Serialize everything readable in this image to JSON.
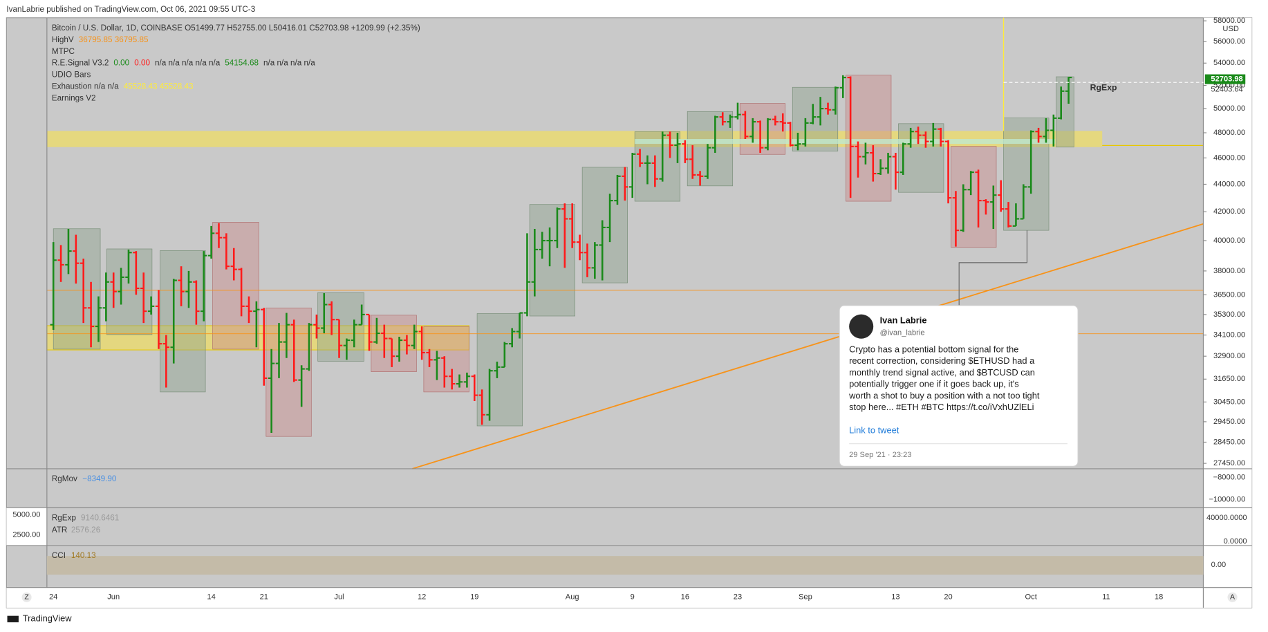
{
  "header": "IvanLabrie published on TradingView.com, Oct 06, 2021 09:55 UTC-3",
  "legend": [
    [
      [
        "Bitcoin / U.S. Dollar, 1D, COINBASE  O51499.77  H52755.00  L50416.01  C52703.98  +1209.99 (+2.35%)",
        "#333333"
      ]
    ],
    [
      [
        "HighV",
        "#333333"
      ],
      [
        "36795.85  36795.85",
        "#f7931a"
      ]
    ],
    [
      [
        "MTPC",
        "#333333"
      ]
    ],
    [
      [
        "R.E.Signal V3.2",
        "#333333"
      ],
      [
        "0.00",
        "#1a8a1a"
      ],
      [
        "0.00",
        "#ff1a1a"
      ],
      [
        "n/a  n/a  n/a  n/a  n/a",
        "#333333"
      ],
      [
        "54154.68",
        "#1a8a1a"
      ],
      [
        "n/a  n/a  n/a  n/a",
        "#333333"
      ]
    ],
    [
      [
        "UDIO Bars",
        "#333333"
      ]
    ],
    [
      [
        "Exhaustion  n/a  n/a",
        "#333333"
      ],
      [
        "45528.43  45528.43",
        "#ffeb3b"
      ]
    ],
    [
      [
        "Earnings V2",
        "#333333"
      ]
    ]
  ],
  "chart_data": {
    "type": "ohlc",
    "log_scale": true,
    "grid": false,
    "up_color": "#1a8a1a",
    "down_color": "#ff1a1a",
    "categories": [
      "24",
      null,
      null,
      null,
      null,
      null,
      null,
      null,
      "Jun",
      null,
      null,
      null,
      null,
      null,
      null,
      null,
      null,
      null,
      null,
      null,
      null,
      "14",
      null,
      null,
      null,
      null,
      null,
      null,
      "21",
      null,
      null,
      null,
      null,
      null,
      null,
      null,
      null,
      null,
      "Jul",
      null,
      null,
      null,
      null,
      null,
      null,
      null,
      null,
      null,
      null,
      "12",
      null,
      null,
      null,
      null,
      null,
      null,
      "19",
      null,
      null,
      null,
      null,
      null,
      null,
      null,
      null,
      null,
      null,
      null,
      null,
      "Aug",
      null,
      null,
      null,
      null,
      null,
      null,
      null,
      "9",
      null,
      null,
      null,
      null,
      null,
      null,
      "16",
      null,
      null,
      null,
      null,
      null,
      null,
      "23",
      null,
      null,
      null,
      null,
      null,
      null,
      null,
      null,
      "Sep",
      null,
      null,
      null,
      null,
      null,
      null,
      null,
      null,
      null,
      null,
      null,
      "13",
      null,
      null,
      null,
      null,
      null,
      null,
      "20",
      null,
      null,
      null,
      null,
      null,
      null,
      null,
      null,
      null,
      null,
      "Oct",
      null,
      null,
      null,
      null,
      null,
      null,
      null,
      null,
      null,
      "11",
      null,
      null,
      null,
      null,
      null,
      null,
      "18"
    ],
    "open": [
      34700,
      38700,
      38400,
      39300,
      38500,
      35700,
      34600,
      35700,
      37300,
      36700,
      37600,
      39200,
      36900,
      35500,
      35800,
      33600,
      33400,
      37400,
      36700,
      37300,
      35500,
      39000,
      40500,
      40200,
      38300,
      38100,
      35800,
      35500,
      35600,
      31700,
      32500,
      33700,
      34700,
      31600,
      32200,
      34700,
      34500,
      35900,
      35000,
      33500,
      33800,
      34700,
      35300,
      33700,
      34200,
      33900,
      32900,
      33800,
      33500,
      34300,
      33100,
      32700,
      32800,
      31800,
      31400,
      31500,
      31800,
      30800,
      29800,
      32100,
      32300,
      33600,
      34300,
      35400,
      37300,
      39400,
      40000,
      40000,
      42200,
      41500,
      39900,
      39200,
      38200,
      39700,
      40900,
      42800,
      44600,
      43800,
      46300,
      45600,
      45600,
      44400,
      47800,
      47000,
      47100,
      45900,
      44700,
      44600,
      46800,
      49300,
      48900,
      49300,
      49500,
      47700,
      48900,
      46800,
      49100,
      48900,
      48800,
      47000,
      47100,
      48800,
      49300,
      50000,
      49900,
      51800,
      52700,
      46900,
      46100,
      46400,
      44800,
      45200,
      46100,
      44900,
      47100,
      48100,
      47800,
      47300,
      48300,
      47300,
      43000,
      40700,
      43600,
      44900,
      42800,
      42700,
      43200,
      42200,
      41000,
      41500,
      43800,
      48100,
      47700,
      48200,
      49200,
      51499.77,
      null,
      null,
      null,
      null,
      null,
      null,
      null,
      null,
      null,
      null,
      null,
      null
    ],
    "high": [
      39900,
      39700,
      40800,
      40400,
      38800,
      37300,
      36400,
      37900,
      37900,
      38200,
      39400,
      39300,
      37900,
      36400,
      36800,
      34100,
      37500,
      38300,
      38000,
      37400,
      39300,
      41000,
      41200,
      40500,
      39500,
      38200,
      36400,
      36100,
      35700,
      33300,
      34800,
      35400,
      35000,
      32400,
      34800,
      35300,
      36600,
      36100,
      35000,
      33900,
      35000,
      35900,
      35300,
      35100,
      34700,
      33900,
      34000,
      34100,
      34700,
      34600,
      33300,
      33200,
      32900,
      32200,
      31900,
      32000,
      31900,
      31100,
      32200,
      32600,
      33700,
      34500,
      35400,
      40500,
      40800,
      40600,
      40900,
      42300,
      42600,
      42600,
      40400,
      39800,
      39900,
      41400,
      43300,
      44700,
      45300,
      46400,
      46700,
      46200,
      46200,
      48100,
      48100,
      48000,
      47400,
      47000,
      45000,
      47100,
      49400,
      49700,
      49500,
      50500,
      49800,
      49200,
      49000,
      49200,
      49400,
      49600,
      48900,
      48000,
      49200,
      50400,
      51000,
      50500,
      51900,
      52900,
      52800,
      47300,
      47200,
      47000,
      45900,
      46400,
      46400,
      47200,
      48400,
      48500,
      48100,
      48800,
      48400,
      47400,
      43500,
      44000,
      45000,
      45100,
      42900,
      43900,
      44300,
      42700,
      42600,
      44000,
      48200,
      48400,
      49200,
      49500,
      51900,
      52755,
      null,
      null,
      null,
      null,
      null,
      null,
      null,
      null,
      null,
      null,
      null,
      null
    ],
    "low": [
      34400,
      37300,
      37800,
      37200,
      34800,
      33400,
      33700,
      34900,
      35700,
      35900,
      37200,
      36500,
      34800,
      35300,
      33300,
      31200,
      32500,
      35800,
      35700,
      34700,
      34900,
      38800,
      39500,
      38100,
      37400,
      35200,
      34800,
      33400,
      31300,
      28900,
      31700,
      32800,
      31500,
      30200,
      32100,
      33900,
      34200,
      34100,
      32800,
      32700,
      33400,
      34700,
      33200,
      33600,
      32800,
      32300,
      32600,
      33000,
      33300,
      32700,
      32300,
      31600,
      31200,
      31100,
      31200,
      31200,
      30500,
      29300,
      29500,
      31700,
      32300,
      33400,
      33900,
      35200,
      36400,
      38800,
      38300,
      39500,
      38200,
      39500,
      38700,
      37600,
      37500,
      37400,
      39900,
      42500,
      42800,
      43000,
      45300,
      44000,
      43800,
      44200,
      46000,
      45600,
      45600,
      44400,
      43900,
      44400,
      46400,
      48600,
      48400,
      49100,
      47500,
      47200,
      46400,
      46600,
      48600,
      48100,
      46900,
      46600,
      46900,
      48700,
      48600,
      49500,
      49500,
      50900,
      43000,
      44500,
      45500,
      44200,
      44700,
      44800,
      43600,
      44700,
      46800,
      47100,
      46800,
      46900,
      46900,
      42600,
      39600,
      40600,
      43200,
      40900,
      41800,
      40800,
      42000,
      40900,
      41000,
      41500,
      43300,
      47200,
      47200,
      46900,
      49100,
      50416.01,
      null,
      null,
      null,
      null,
      null,
      null,
      null,
      null,
      null,
      null,
      null,
      null
    ],
    "close": [
      38700,
      38400,
      39300,
      38500,
      35700,
      34600,
      35700,
      37300,
      36700,
      37600,
      39200,
      36900,
      35500,
      35800,
      33600,
      33400,
      37400,
      36700,
      37300,
      35500,
      39000,
      40500,
      40200,
      38300,
      38100,
      35800,
      35500,
      35600,
      31700,
      32500,
      33700,
      34700,
      31600,
      32200,
      34700,
      34500,
      35900,
      35000,
      33500,
      33800,
      34700,
      35300,
      33700,
      34200,
      33900,
      32900,
      33800,
      33500,
      34300,
      33100,
      32700,
      32800,
      31800,
      31400,
      31500,
      31800,
      30800,
      29800,
      32100,
      32300,
      33600,
      34300,
      35400,
      37300,
      39400,
      40000,
      40000,
      42200,
      41500,
      39900,
      39200,
      38200,
      39700,
      40900,
      42800,
      44600,
      43800,
      46300,
      45600,
      45600,
      44400,
      47800,
      47000,
      47100,
      45900,
      44700,
      44600,
      46800,
      49300,
      48900,
      49300,
      49500,
      47700,
      48900,
      46800,
      49100,
      48900,
      48800,
      47000,
      47100,
      48800,
      49300,
      50000,
      49900,
      51800,
      52700,
      46900,
      46100,
      46400,
      44800,
      45200,
      46100,
      44900,
      47100,
      48100,
      47800,
      47300,
      48300,
      47300,
      43000,
      40700,
      43600,
      44900,
      42800,
      42700,
      43200,
      42200,
      41000,
      41500,
      43800,
      48100,
      47700,
      48200,
      49200,
      51499.77,
      52703.98,
      null,
      null,
      null,
      null,
      null,
      null,
      null,
      null,
      null,
      null,
      null,
      null
    ],
    "ylim": [
      27200,
      58300
    ],
    "yticks": [
      {
        "value": 58000,
        "label": "58000.00"
      },
      {
        "value": 56000,
        "label": "56000.00"
      },
      {
        "value": 54000,
        "label": "54000.00"
      },
      {
        "value": 52000,
        "label": "52000.00"
      },
      {
        "value": 50000,
        "label": "50000.00"
      },
      {
        "value": 48000,
        "label": "48000.00"
      },
      {
        "value": 46000,
        "label": "46000.00"
      },
      {
        "value": 44000,
        "label": "44000.00"
      },
      {
        "value": 42000,
        "label": "42000.00"
      },
      {
        "value": 40000,
        "label": "40000.00"
      },
      {
        "value": 38000,
        "label": "38000.00"
      },
      {
        "value": 36500,
        "label": "36500.00"
      },
      {
        "value": 35300,
        "label": "35300.00"
      },
      {
        "value": 34100,
        "label": "34100.00"
      },
      {
        "value": 32900,
        "label": "32900.00"
      },
      {
        "value": 31650,
        "label": "31650.00"
      },
      {
        "value": 30450,
        "label": "30450.00"
      },
      {
        "value": 29450,
        "label": "29450.00"
      },
      {
        "value": 28450,
        "label": "28450.00"
      },
      {
        "value": 27450,
        "label": "27450.00"
      }
    ]
  },
  "price_axis": {
    "currency": "USD",
    "last_price": "52703.98",
    "prev_level": "52403.64"
  },
  "annotation": "RgExp",
  "panes": {
    "rgmov": {
      "name": "RgMov",
      "reading": "−8349.90",
      "ticks": [
        "−8000.00",
        "−10000.00"
      ]
    },
    "volume": {
      "name": "RgExp",
      "reading": "9140.6461",
      "atr_name": "ATR",
      "atr_reading": "2576.26",
      "left_ticks": [
        "5000.00",
        "2500.00"
      ],
      "right_ticks": [
        "40000.0000",
        "0.0000"
      ]
    },
    "cci": {
      "name": "CCI",
      "reading": "140.13",
      "ticks": [
        "0.00"
      ]
    }
  },
  "tweet": {
    "name": "Ivan Labrie",
    "handle": "@ivan_labrie",
    "lines": [
      "Crypto has a potential bottom signal for the",
      "recent correction, considering $ETHUSD had a",
      "monthly trend signal active, and $BTCUSD can",
      "potentially trigger one if it goes back up, it's",
      "worth a shot to buy a position with a not too tight",
      "stop here... #ETH #BTC https://t.co/iVxhUZlELi"
    ],
    "link": "Link to tweet",
    "date": "29 Sep '21 · 23:23"
  },
  "footer": {
    "brand": "TradingView",
    "left_button": "Z",
    "right_button": "A"
  }
}
